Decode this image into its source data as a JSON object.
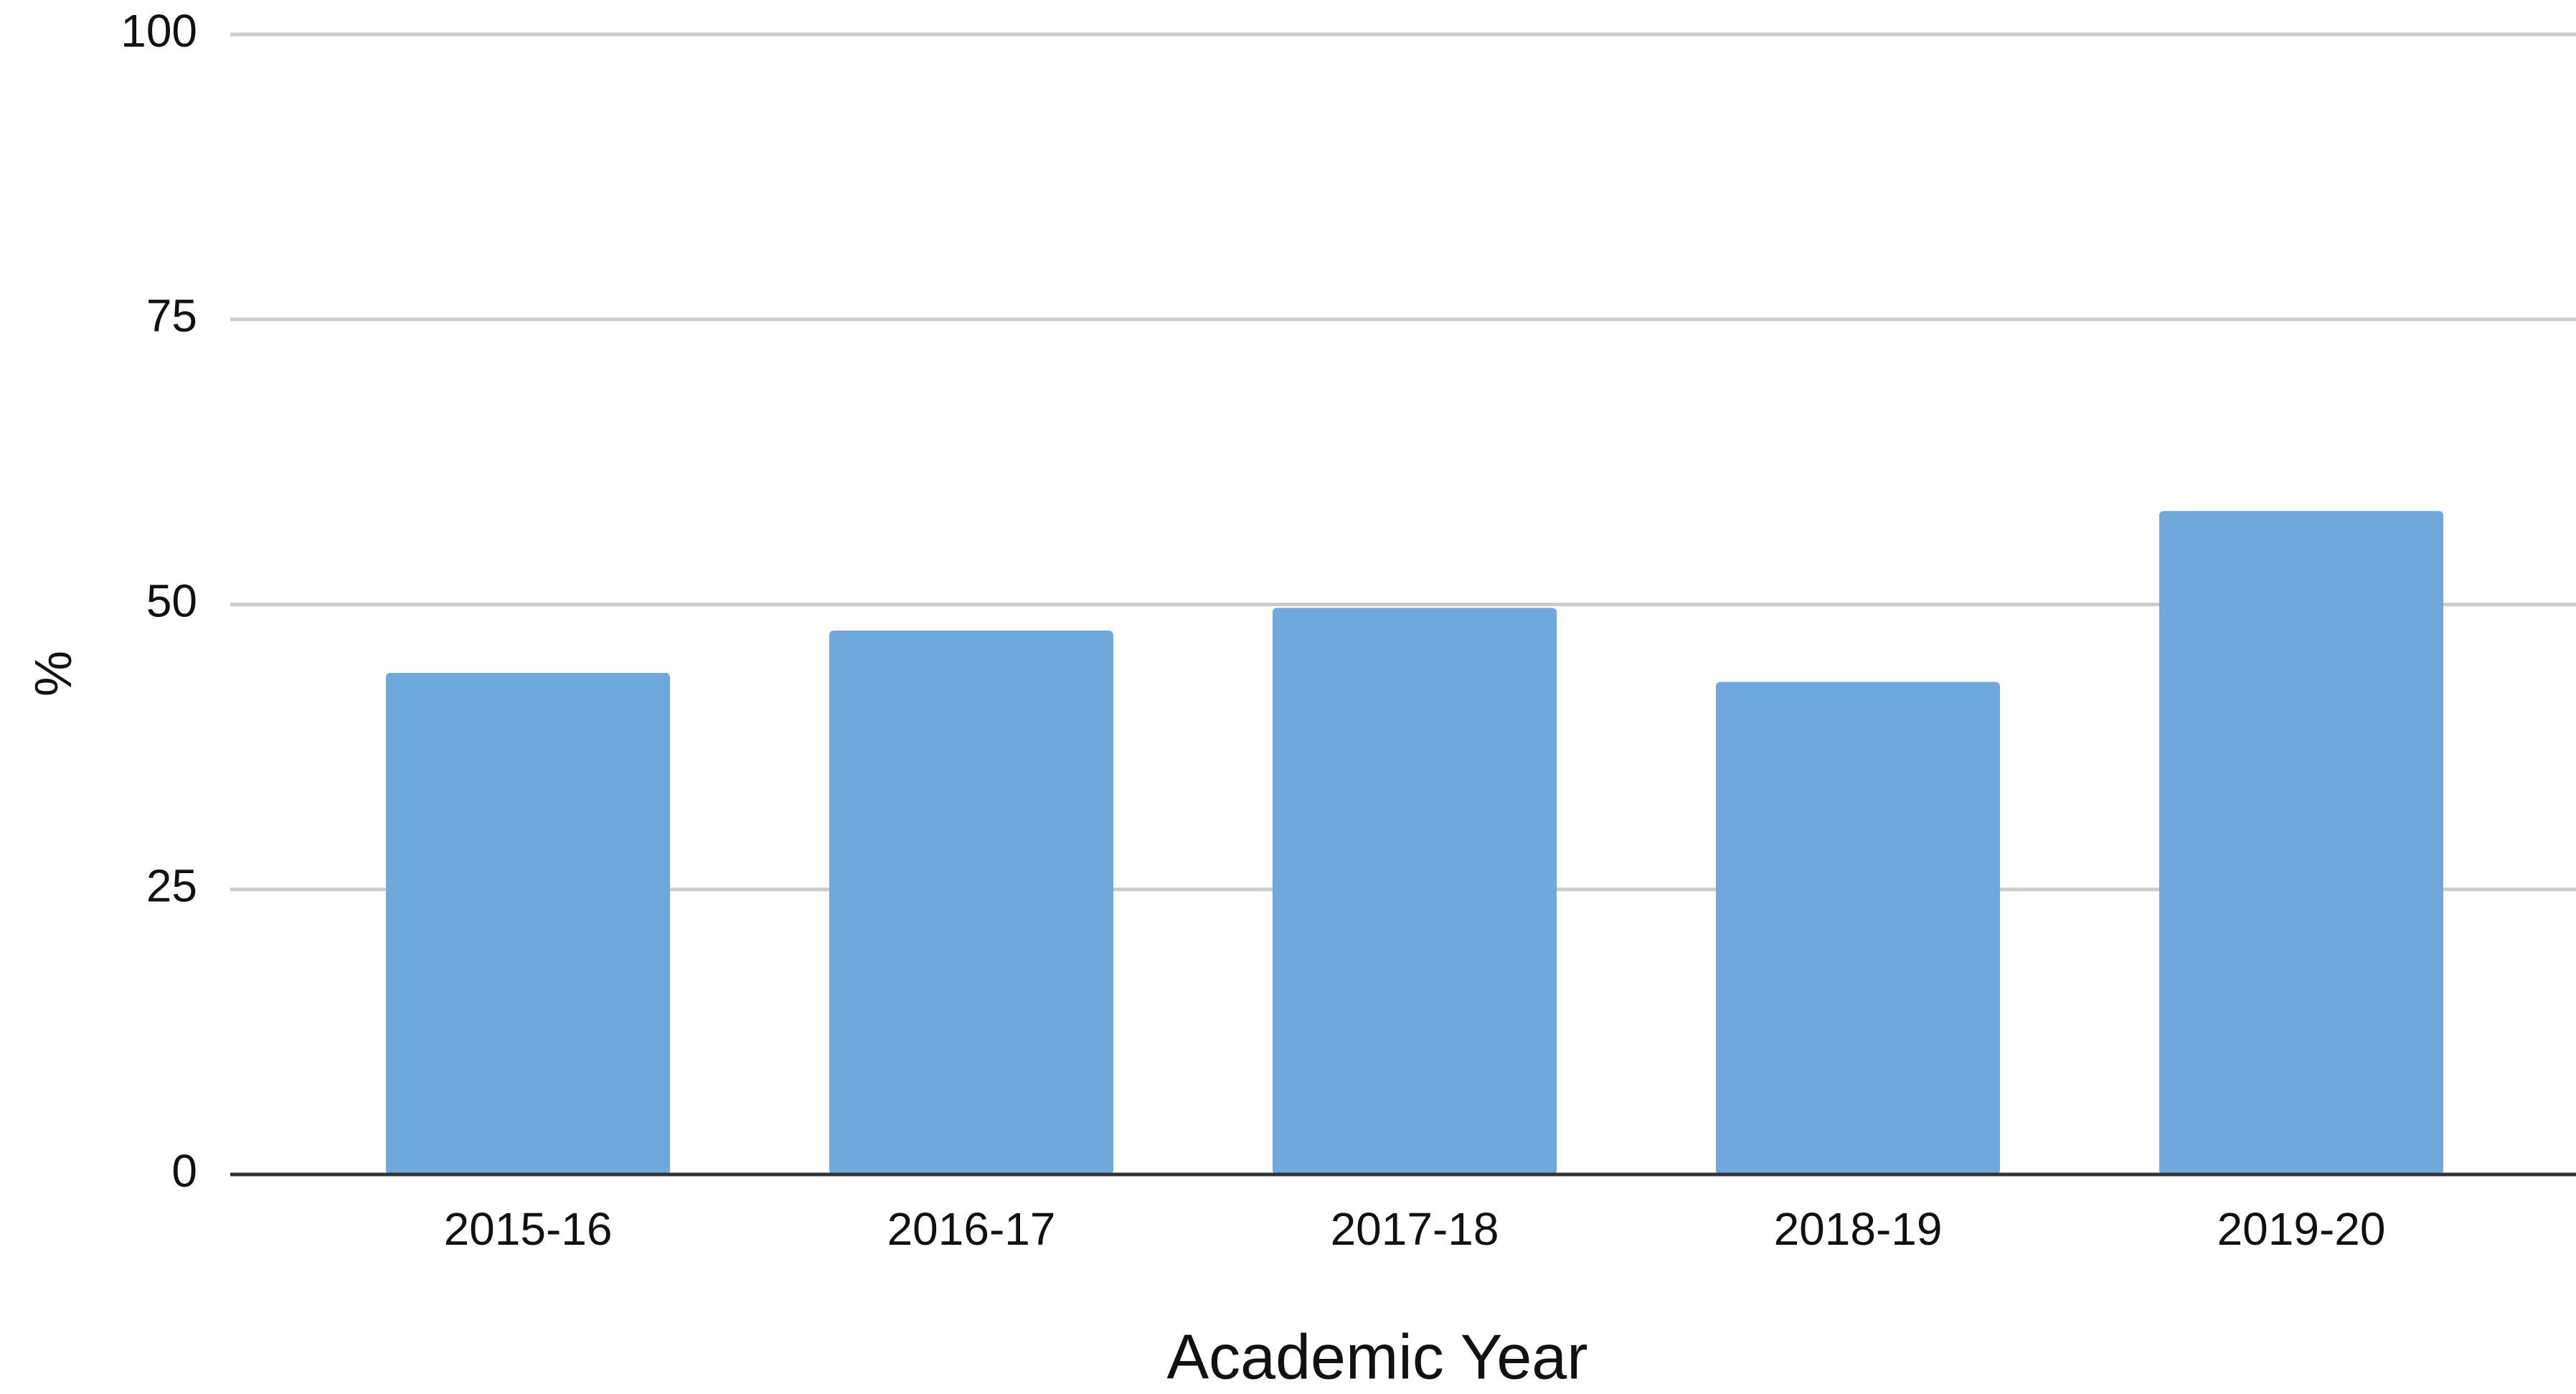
{
  "chart_data": {
    "type": "bar",
    "x_label": "Academic Year",
    "y_label": "%",
    "categories": [
      "2015-16",
      "2016-17",
      "2017-18",
      "2018-19",
      "2019-20"
    ],
    "values": [
      44,
      47.7,
      49.7,
      43.2,
      58.2
    ],
    "color": "#6fa8dc",
    "ylim": [
      0,
      100
    ],
    "yticks": [
      0,
      25,
      50,
      75,
      100
    ],
    "grid": true
  }
}
